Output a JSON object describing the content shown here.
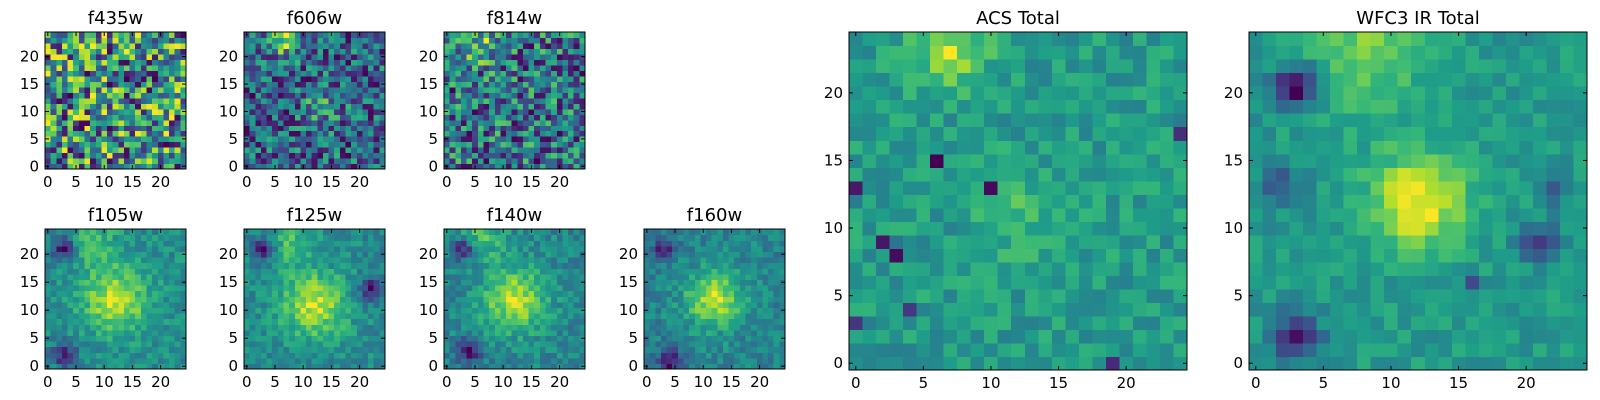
{
  "chart_data": [
    {
      "type": "heatmap",
      "title": "f435w",
      "grid": [
        25,
        25
      ],
      "x_ticks": [
        0,
        5,
        10,
        15,
        20
      ],
      "y_ticks": [
        0,
        5,
        10,
        15,
        20
      ],
      "xlim": [
        0,
        24
      ],
      "ylim": [
        0,
        24
      ],
      "colormap": "viridis",
      "seed": 11,
      "noise": 0.85,
      "blobs": [],
      "dark_spots": []
    },
    {
      "type": "heatmap",
      "title": "f606w",
      "grid": [
        25,
        25
      ],
      "x_ticks": [
        0,
        5,
        10,
        15,
        20
      ],
      "y_ticks": [
        0,
        5,
        10,
        15,
        20
      ],
      "xlim": [
        0,
        24
      ],
      "ylim": [
        0,
        24
      ],
      "colormap": "viridis",
      "seed": 23,
      "noise": 0.85,
      "blobs": [
        {
          "x": 7,
          "y": 23,
          "sigma": 2,
          "amp": 0.5
        },
        {
          "x": 13,
          "y": 11,
          "sigma": 2,
          "amp": 0.35
        }
      ],
      "dark_spots": []
    },
    {
      "type": "heatmap",
      "title": "f814w",
      "grid": [
        25,
        25
      ],
      "x_ticks": [
        0,
        5,
        10,
        15,
        20
      ],
      "y_ticks": [
        0,
        5,
        10,
        15,
        20
      ],
      "xlim": [
        0,
        24
      ],
      "ylim": [
        0,
        24
      ],
      "colormap": "viridis",
      "seed": 37,
      "noise": 0.85,
      "blobs": [
        {
          "x": 6,
          "y": 22,
          "sigma": 2.5,
          "amp": 0.4
        }
      ],
      "dark_spots": []
    },
    {
      "type": "heatmap",
      "title": "f105w",
      "grid": [
        25,
        25
      ],
      "x_ticks": [
        0,
        5,
        10,
        15,
        20
      ],
      "y_ticks": [
        0,
        5,
        10,
        15,
        20
      ],
      "xlim": [
        0,
        24
      ],
      "ylim": [
        0,
        24
      ],
      "colormap": "viridis",
      "seed": 41,
      "noise": 0.45,
      "blobs": [
        {
          "x": 12,
          "y": 12,
          "sigma": 4,
          "amp": 0.8
        },
        {
          "x": 8,
          "y": 22,
          "sigma": 3,
          "amp": 0.4
        }
      ],
      "dark_spots": [
        {
          "x": 3,
          "y": 21,
          "sigma": 1.5,
          "amp": 0.9
        },
        {
          "x": 3,
          "y": 2,
          "sigma": 1.5,
          "amp": 0.8
        }
      ]
    },
    {
      "type": "heatmap",
      "title": "f125w",
      "grid": [
        25,
        25
      ],
      "x_ticks": [
        0,
        5,
        10,
        15,
        20
      ],
      "y_ticks": [
        0,
        5,
        10,
        15,
        20
      ],
      "xlim": [
        0,
        24
      ],
      "ylim": [
        0,
        24
      ],
      "colormap": "viridis",
      "seed": 53,
      "noise": 0.45,
      "blobs": [
        {
          "x": 12,
          "y": 11,
          "sigma": 4,
          "amp": 0.8
        },
        {
          "x": 8,
          "y": 22,
          "sigma": 3,
          "amp": 0.4
        }
      ],
      "dark_spots": [
        {
          "x": 3,
          "y": 21,
          "sigma": 1.5,
          "amp": 0.8
        },
        {
          "x": 22,
          "y": 14,
          "sigma": 1.5,
          "amp": 0.7
        }
      ]
    },
    {
      "type": "heatmap",
      "title": "f140w",
      "grid": [
        25,
        25
      ],
      "x_ticks": [
        0,
        5,
        10,
        15,
        20
      ],
      "y_ticks": [
        0,
        5,
        10,
        15,
        20
      ],
      "xlim": [
        0,
        24
      ],
      "ylim": [
        0,
        24
      ],
      "colormap": "viridis",
      "seed": 67,
      "noise": 0.45,
      "blobs": [
        {
          "x": 12,
          "y": 12,
          "sigma": 4,
          "amp": 0.8
        },
        {
          "x": 6,
          "y": 23,
          "sigma": 3,
          "amp": 0.45
        }
      ],
      "dark_spots": [
        {
          "x": 3,
          "y": 21,
          "sigma": 1.5,
          "amp": 0.8
        },
        {
          "x": 4,
          "y": 3,
          "sigma": 1.5,
          "amp": 0.8
        }
      ]
    },
    {
      "type": "heatmap",
      "title": "f160w",
      "grid": [
        25,
        25
      ],
      "x_ticks": [
        0,
        5,
        10,
        15,
        20
      ],
      "y_ticks": [
        0,
        5,
        10,
        15,
        20
      ],
      "xlim": [
        0,
        24
      ],
      "ylim": [
        0,
        24
      ],
      "colormap": "viridis",
      "seed": 79,
      "noise": 0.45,
      "blobs": [
        {
          "x": 12,
          "y": 12,
          "sigma": 3.5,
          "amp": 0.85
        }
      ],
      "dark_spots": [
        {
          "x": 3,
          "y": 21,
          "sigma": 1.5,
          "amp": 0.7
        },
        {
          "x": 4,
          "y": 1,
          "sigma": 1.5,
          "amp": 0.8
        }
      ]
    },
    {
      "type": "heatmap",
      "title": "ACS Total",
      "grid": [
        25,
        25
      ],
      "x_ticks": [
        0,
        5,
        10,
        15,
        20
      ],
      "y_ticks": [
        0,
        5,
        10,
        15,
        20
      ],
      "xlim": [
        0,
        24
      ],
      "ylim": [
        0,
        24
      ],
      "colormap": "viridis",
      "seed": 97,
      "noise": 0.6,
      "blobs": [
        {
          "x": 7,
          "y": 23,
          "sigma": 1.8,
          "amp": 0.9
        },
        {
          "x": 12,
          "y": 11,
          "sigma": 2,
          "amp": 0.35
        }
      ],
      "dark_spots": [
        {
          "x": 6,
          "y": 15,
          "sigma": 0.4,
          "amp": 1.2
        },
        {
          "x": 10,
          "y": 13,
          "sigma": 0.4,
          "amp": 1.2
        },
        {
          "x": 0,
          "y": 13,
          "sigma": 0.4,
          "amp": 1.2
        },
        {
          "x": 2,
          "y": 9,
          "sigma": 0.4,
          "amp": 1.2
        },
        {
          "x": 3,
          "y": 8,
          "sigma": 0.4,
          "amp": 1.2
        },
        {
          "x": 4,
          "y": 4,
          "sigma": 0.4,
          "amp": 1.2
        },
        {
          "x": 0,
          "y": 3,
          "sigma": 0.4,
          "amp": 1.2
        },
        {
          "x": 19,
          "y": 0,
          "sigma": 0.4,
          "amp": 1.2
        },
        {
          "x": 24,
          "y": 17,
          "sigma": 0.4,
          "amp": 1.2
        }
      ]
    },
    {
      "type": "heatmap",
      "title": "WFC3 IR Total",
      "grid": [
        25,
        25
      ],
      "x_ticks": [
        0,
        5,
        10,
        15,
        20
      ],
      "y_ticks": [
        0,
        5,
        10,
        15,
        20
      ],
      "xlim": [
        0,
        24
      ],
      "ylim": [
        0,
        24
      ],
      "colormap": "viridis",
      "seed": 113,
      "noise": 0.35,
      "blobs": [
        {
          "x": 12,
          "y": 12,
          "sigma": 2.5,
          "amp": 0.9
        },
        {
          "x": 8,
          "y": 23,
          "sigma": 3,
          "amp": 0.5
        }
      ],
      "dark_spots": [
        {
          "x": 3,
          "y": 20.5,
          "sigma": 1.2,
          "amp": 1.1
        },
        {
          "x": 3,
          "y": 2,
          "sigma": 1.2,
          "amp": 1.1
        },
        {
          "x": 21,
          "y": 9,
          "sigma": 1,
          "amp": 0.8
        },
        {
          "x": 22,
          "y": 13,
          "sigma": 0.8,
          "amp": 0.6
        },
        {
          "x": 16,
          "y": 6,
          "sigma": 0.5,
          "amp": 0.7
        },
        {
          "x": 2,
          "y": 13,
          "sigma": 1,
          "amp": 0.6
        }
      ]
    }
  ]
}
